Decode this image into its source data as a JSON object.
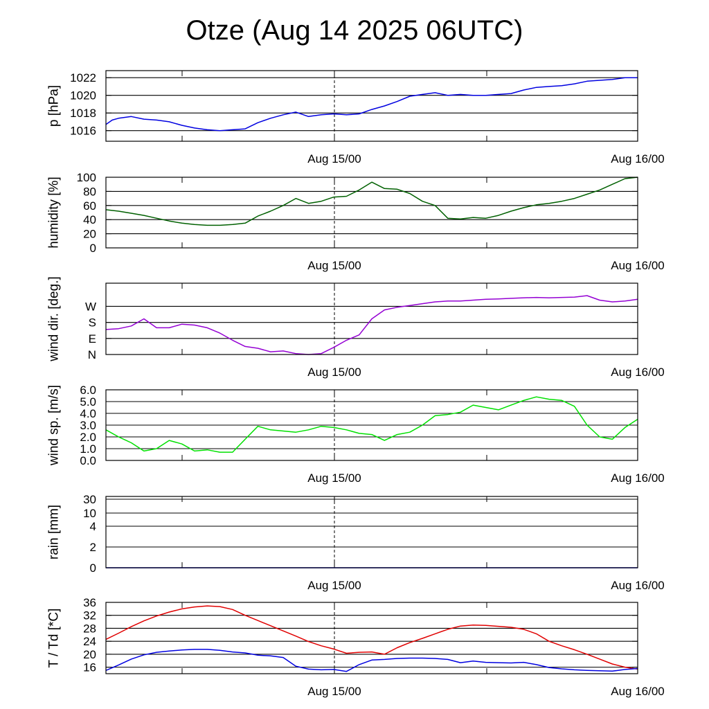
{
  "title": "Otze (Aug 14 2025 06UTC)",
  "x_tick_labels": [
    "Aug 15/00",
    "Aug 16/00"
  ],
  "chart_data": [
    {
      "type": "line",
      "ylabel": "p [hPa]",
      "ylim": [
        1014.8,
        1022.8
      ],
      "yticks": [
        "1016",
        "1018",
        "1020",
        "1022"
      ],
      "ytick_values": [
        1016,
        1018,
        1020,
        1022
      ],
      "x_unit": "hours since Aug 14 06UTC",
      "xlim": [
        0,
        42
      ],
      "x": [
        0,
        0.5,
        1,
        2,
        3,
        4,
        5,
        6,
        7,
        8,
        9,
        10,
        11,
        12,
        13,
        14,
        15,
        16,
        17,
        18,
        19,
        20,
        21,
        22,
        23,
        24,
        25,
        26,
        27,
        28,
        29,
        30,
        31,
        32,
        33,
        34,
        35,
        36,
        37,
        38,
        39,
        40,
        41,
        42
      ],
      "series": [
        {
          "color": "#0000e0",
          "values": [
            1016.7,
            1017.2,
            1017.4,
            1017.6,
            1017.3,
            1017.2,
            1017.0,
            1016.6,
            1016.3,
            1016.1,
            1016.0,
            1016.1,
            1016.2,
            1016.9,
            1017.4,
            1017.8,
            1018.1,
            1017.6,
            1017.8,
            1017.9,
            1017.8,
            1017.9,
            1018.4,
            1018.8,
            1019.3,
            1019.9,
            1020.1,
            1020.3,
            1020.0,
            1020.1,
            1020.0,
            1020.0,
            1020.1,
            1020.2,
            1020.6,
            1020.9,
            1021.0,
            1021.1,
            1021.3,
            1021.6,
            1021.7,
            1021.8,
            1022.0,
            1022.0
          ]
        }
      ]
    },
    {
      "type": "line",
      "ylabel": "humidity [%]",
      "ylim": [
        0,
        100
      ],
      "yticks": [
        "0",
        "20",
        "40",
        "60",
        "80",
        "100"
      ],
      "ytick_values": [
        0,
        20,
        40,
        60,
        80,
        100
      ],
      "x_unit": "hours since Aug 14 06UTC",
      "xlim": [
        0,
        42
      ],
      "x": [
        0,
        1,
        2,
        3,
        4,
        5,
        6,
        7,
        8,
        9,
        10,
        11,
        12,
        13,
        14,
        15,
        16,
        17,
        18,
        19,
        20,
        21,
        22,
        23,
        24,
        25,
        26,
        27,
        28,
        29,
        30,
        31,
        32,
        33,
        34,
        35,
        36,
        37,
        38,
        39,
        40,
        41,
        42
      ],
      "series": [
        {
          "color": "#006000",
          "values": [
            54,
            52,
            49,
            46,
            42,
            38,
            35,
            33,
            32,
            32,
            33,
            35,
            45,
            52,
            60,
            70,
            63,
            66,
            72,
            73,
            82,
            93,
            84,
            83,
            77,
            66,
            60,
            42,
            41,
            43,
            42,
            46,
            52,
            57,
            61,
            63,
            66,
            70,
            76,
            82,
            90,
            98,
            100
          ]
        }
      ]
    },
    {
      "type": "line",
      "ylabel": "wind dir. [deg.]",
      "ylim": [
        0,
        400
      ],
      "yticks": [
        "N",
        "E",
        "S",
        "W"
      ],
      "ytick_values": [
        0,
        90,
        180,
        270
      ],
      "x_unit": "hours since Aug 14 06UTC",
      "xlim": [
        0,
        42
      ],
      "x": [
        0,
        1,
        2,
        3,
        4,
        5,
        6,
        7,
        8,
        9,
        10,
        11,
        12,
        13,
        14,
        15,
        16,
        17,
        18,
        19,
        20,
        21,
        22,
        23,
        24,
        25,
        26,
        27,
        28,
        29,
        30,
        31,
        32,
        33,
        34,
        35,
        36,
        37,
        38,
        39,
        40,
        41,
        42
      ],
      "series": [
        {
          "color": "#9400d3",
          "values": [
            140,
            145,
            160,
            200,
            150,
            150,
            170,
            165,
            150,
            120,
            80,
            45,
            35,
            15,
            20,
            5,
            0,
            5,
            40,
            80,
            110,
            200,
            250,
            265,
            275,
            285,
            295,
            300,
            300,
            305,
            310,
            312,
            315,
            318,
            320,
            318,
            320,
            322,
            330,
            305,
            295,
            300,
            310
          ]
        }
      ]
    },
    {
      "type": "line",
      "ylabel": "wind sp. [m/s]",
      "ylim": [
        0,
        6
      ],
      "yticks": [
        "0.0",
        "1.0",
        "2.0",
        "3.0",
        "4.0",
        "5.0",
        "6.0"
      ],
      "ytick_values": [
        0,
        1,
        2,
        3,
        4,
        5,
        6
      ],
      "x_unit": "hours since Aug 14 06UTC",
      "xlim": [
        0,
        42
      ],
      "x": [
        0,
        1,
        2,
        3,
        4,
        5,
        6,
        7,
        8,
        9,
        10,
        11,
        12,
        13,
        14,
        15,
        16,
        17,
        18,
        19,
        20,
        21,
        22,
        23,
        24,
        25,
        26,
        27,
        28,
        29,
        30,
        31,
        32,
        33,
        34,
        35,
        36,
        37,
        38,
        39,
        40,
        41,
        42
      ],
      "series": [
        {
          "color": "#00e000",
          "values": [
            2.6,
            2.0,
            1.5,
            0.8,
            1.0,
            1.7,
            1.4,
            0.8,
            0.9,
            0.7,
            0.7,
            1.8,
            2.9,
            2.6,
            2.5,
            2.4,
            2.6,
            2.9,
            2.8,
            2.6,
            2.3,
            2.2,
            1.7,
            2.2,
            2.4,
            3.0,
            3.8,
            3.9,
            4.1,
            4.7,
            4.5,
            4.3,
            4.7,
            5.1,
            5.4,
            5.2,
            5.1,
            4.6,
            3.0,
            2.0,
            1.8,
            2.8,
            3.5
          ]
        }
      ]
    },
    {
      "type": "line",
      "ylabel": "rain [mm]",
      "scale": "irregular",
      "yticks": [
        "0",
        "2",
        "4",
        "10",
        "30"
      ],
      "ytick_values": [
        0,
        2,
        4,
        10,
        30
      ],
      "x_unit": "hours since Aug 14 06UTC",
      "xlim": [
        0,
        42
      ],
      "x": [
        0,
        42
      ],
      "series": [
        {
          "color": "#0000e0",
          "values": [
            0,
            0
          ]
        }
      ]
    },
    {
      "type": "line",
      "ylabel": "T / Td [*C]",
      "ylim": [
        14,
        36
      ],
      "yticks": [
        "16",
        "20",
        "24",
        "28",
        "32",
        "36"
      ],
      "ytick_values": [
        16,
        20,
        24,
        28,
        32,
        36
      ],
      "x_unit": "hours since Aug 14 06UTC",
      "xlim": [
        0,
        42
      ],
      "x": [
        0,
        1,
        2,
        3,
        4,
        5,
        6,
        7,
        8,
        9,
        10,
        11,
        12,
        13,
        14,
        15,
        16,
        17,
        18,
        19,
        20,
        21,
        22,
        23,
        24,
        25,
        26,
        27,
        28,
        29,
        30,
        31,
        32,
        33,
        34,
        35,
        36,
        37,
        38,
        39,
        40,
        41,
        42
      ],
      "series": [
        {
          "color": "#e00000",
          "values": [
            24.6,
            26.5,
            28.5,
            30.3,
            31.8,
            33.0,
            34.0,
            34.6,
            34.9,
            34.7,
            33.8,
            32.0,
            30.4,
            28.8,
            27.2,
            25.6,
            23.9,
            22.6,
            21.6,
            20.3,
            20.6,
            20.7,
            20.0,
            22.0,
            23.6,
            24.9,
            26.3,
            27.7,
            28.7,
            29.0,
            28.9,
            28.6,
            28.3,
            27.7,
            26.3,
            24.0,
            22.6,
            21.4,
            20.0,
            18.5,
            17.0,
            16.0,
            15.4
          ]
        },
        {
          "color": "#0000e0",
          "values": [
            15.0,
            16.7,
            18.5,
            19.8,
            20.6,
            21.0,
            21.3,
            21.5,
            21.5,
            21.2,
            20.7,
            20.4,
            19.7,
            19.5,
            19.0,
            16.3,
            15.4,
            15.2,
            15.3,
            14.7,
            16.8,
            18.2,
            18.4,
            18.7,
            18.8,
            18.8,
            18.7,
            18.4,
            17.4,
            17.9,
            17.5,
            17.4,
            17.3,
            17.5,
            16.8,
            15.9,
            15.5,
            15.2,
            15.0,
            14.9,
            14.8,
            15.3,
            15.6
          ]
        }
      ]
    }
  ]
}
